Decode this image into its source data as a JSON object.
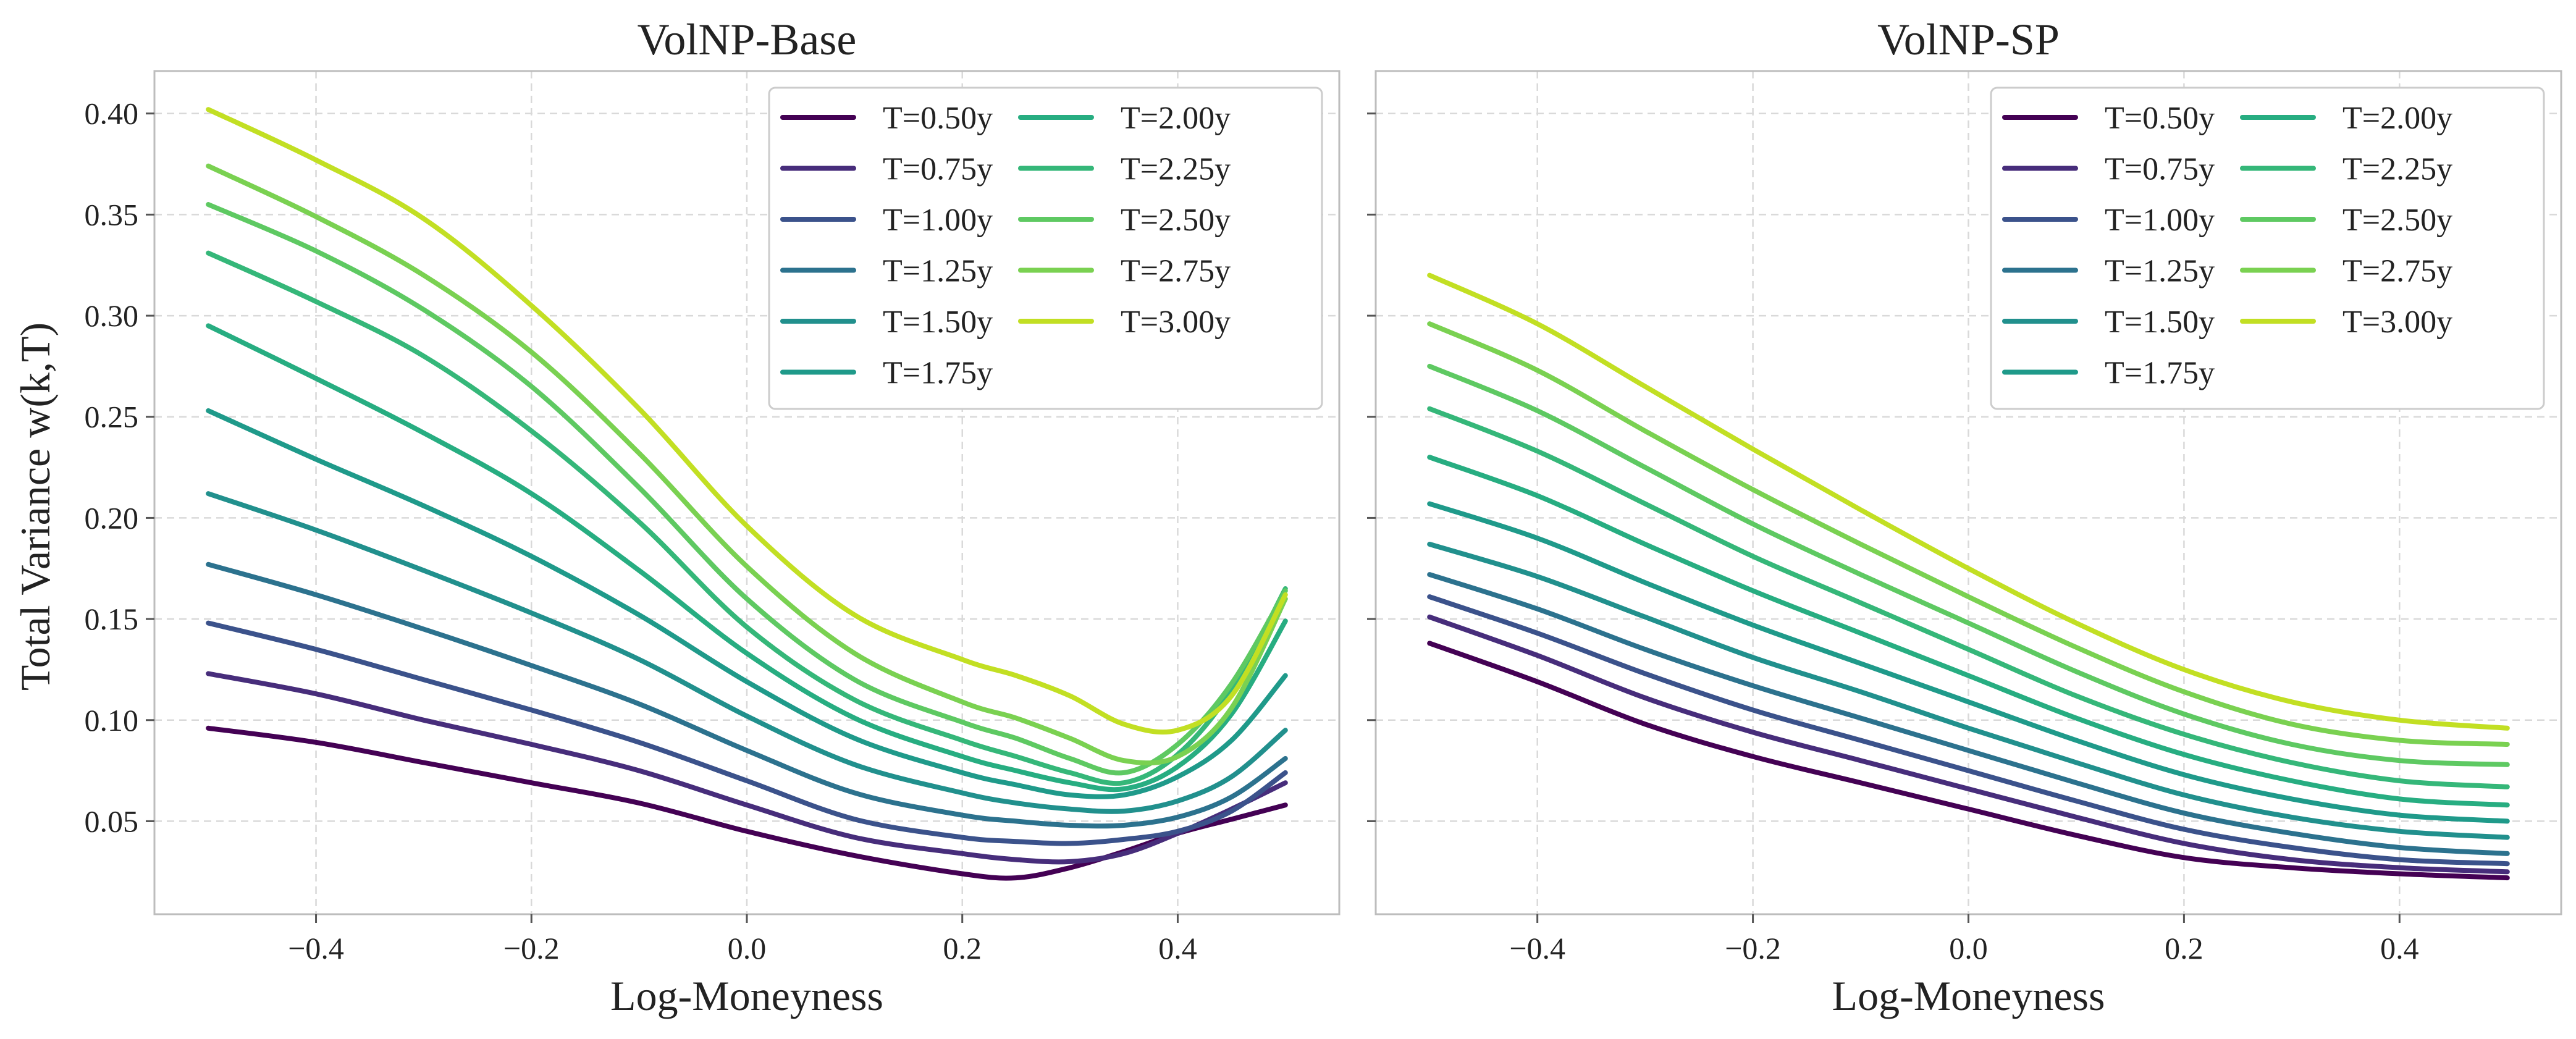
{
  "figure": {
    "ylabel": "Total Variance  w(k,T)"
  },
  "palette": [
    "#440154",
    "#472d7b",
    "#3b528b",
    "#2c728e",
    "#21908d",
    "#1f9a8a",
    "#27ad81",
    "#35b779",
    "#5ec962",
    "#7ad151",
    "#c2df23"
  ],
  "chart_data": [
    {
      "type": "line",
      "title": "VolNP-Base",
      "xlabel": "Log-Moneyness",
      "ylabel": "Total Variance  w(k,T)",
      "xlim": [
        -0.55,
        0.55
      ],
      "ylim": [
        0.004,
        0.421
      ],
      "xticks": [
        -0.4,
        -0.2,
        0.0,
        0.2,
        0.4
      ],
      "xtick_labels": [
        "−0.4",
        "−0.2",
        "0.0",
        "0.2",
        "0.4"
      ],
      "yticks": [
        0.05,
        0.1,
        0.15,
        0.2,
        0.25,
        0.3,
        0.35,
        0.4
      ],
      "ytick_labels": [
        "0.05",
        "0.10",
        "0.15",
        "0.20",
        "0.25",
        "0.30",
        "0.35",
        "0.40"
      ],
      "grid": true,
      "legend": "top-right, 2 columns",
      "x": [
        -0.5,
        -0.4,
        -0.3,
        -0.2,
        -0.1,
        0.0,
        0.1,
        0.2,
        0.25,
        0.3,
        0.35,
        0.4,
        0.45,
        0.5
      ],
      "series": [
        {
          "name": "T=0.50y",
          "values": [
            0.096,
            0.089,
            0.079,
            0.069,
            0.059,
            0.045,
            0.033,
            0.024,
            0.022,
            0.027,
            0.035,
            0.044,
            0.051,
            0.058
          ]
        },
        {
          "name": "T=0.75y",
          "values": [
            0.123,
            0.113,
            0.1,
            0.088,
            0.075,
            0.058,
            0.042,
            0.034,
            0.031,
            0.03,
            0.034,
            0.044,
            0.056,
            0.069
          ]
        },
        {
          "name": "T=1.00y",
          "values": [
            0.148,
            0.135,
            0.12,
            0.105,
            0.089,
            0.07,
            0.051,
            0.042,
            0.04,
            0.039,
            0.041,
            0.045,
            0.055,
            0.074
          ]
        },
        {
          "name": "T=1.25y",
          "values": [
            0.177,
            0.162,
            0.145,
            0.127,
            0.108,
            0.085,
            0.064,
            0.053,
            0.05,
            0.048,
            0.048,
            0.052,
            0.062,
            0.081
          ]
        },
        {
          "name": "T=1.50y",
          "values": [
            0.212,
            0.194,
            0.174,
            0.153,
            0.13,
            0.102,
            0.078,
            0.064,
            0.059,
            0.056,
            0.055,
            0.06,
            0.072,
            0.095
          ]
        },
        {
          "name": "T=1.75y",
          "values": [
            0.253,
            0.229,
            0.206,
            0.181,
            0.152,
            0.119,
            0.091,
            0.074,
            0.068,
            0.063,
            0.063,
            0.072,
            0.09,
            0.122
          ]
        },
        {
          "name": "T=2.00y",
          "values": [
            0.295,
            0.269,
            0.242,
            0.212,
            0.174,
            0.133,
            0.101,
            0.082,
            0.075,
            0.069,
            0.066,
            0.077,
            0.103,
            0.149
          ]
        },
        {
          "name": "T=2.25y",
          "values": [
            0.331,
            0.307,
            0.28,
            0.243,
            0.198,
            0.146,
            0.11,
            0.09,
            0.082,
            0.074,
            0.069,
            0.083,
            0.115,
            0.165
          ]
        },
        {
          "name": "T=2.50y",
          "values": [
            0.355,
            0.332,
            0.303,
            0.265,
            0.215,
            0.16,
            0.12,
            0.099,
            0.091,
            0.081,
            0.074,
            0.088,
            0.118,
            0.164
          ]
        },
        {
          "name": "T=2.75y",
          "values": [
            0.374,
            0.349,
            0.32,
            0.282,
            0.232,
            0.176,
            0.133,
            0.109,
            0.101,
            0.091,
            0.08,
            0.082,
            0.106,
            0.16
          ]
        },
        {
          "name": "T=3.00y",
          "values": [
            0.402,
            0.377,
            0.348,
            0.305,
            0.254,
            0.196,
            0.152,
            0.13,
            0.122,
            0.112,
            0.098,
            0.095,
            0.112,
            0.162
          ]
        }
      ]
    },
    {
      "type": "line",
      "title": "VolNP-SP",
      "xlabel": "Log-Moneyness",
      "ylabel": "",
      "xlim": [
        -0.55,
        0.55
      ],
      "ylim": [
        0.004,
        0.421
      ],
      "xticks": [
        -0.4,
        -0.2,
        0.0,
        0.2,
        0.4
      ],
      "xtick_labels": [
        "−0.4",
        "−0.2",
        "0.0",
        "0.2",
        "0.4"
      ],
      "yticks": [
        0.05,
        0.1,
        0.15,
        0.2,
        0.25,
        0.3,
        0.35,
        0.4
      ],
      "ytick_labels": [],
      "grid": true,
      "legend": "top-right, 2 columns",
      "x": [
        -0.5,
        -0.4,
        -0.3,
        -0.2,
        -0.1,
        0.0,
        0.1,
        0.2,
        0.3,
        0.4,
        0.5
      ],
      "series": [
        {
          "name": "T=0.50y",
          "values": [
            0.138,
            0.119,
            0.098,
            0.082,
            0.069,
            0.056,
            0.043,
            0.032,
            0.027,
            0.024,
            0.022
          ]
        },
        {
          "name": "T=0.75y",
          "values": [
            0.151,
            0.132,
            0.111,
            0.094,
            0.08,
            0.066,
            0.052,
            0.039,
            0.031,
            0.027,
            0.025
          ]
        },
        {
          "name": "T=1.00y",
          "values": [
            0.161,
            0.143,
            0.123,
            0.105,
            0.09,
            0.075,
            0.06,
            0.046,
            0.037,
            0.031,
            0.029
          ]
        },
        {
          "name": "T=1.25y",
          "values": [
            0.172,
            0.155,
            0.135,
            0.117,
            0.101,
            0.085,
            0.069,
            0.054,
            0.044,
            0.037,
            0.034
          ]
        },
        {
          "name": "T=1.50y",
          "values": [
            0.187,
            0.171,
            0.151,
            0.131,
            0.114,
            0.096,
            0.079,
            0.063,
            0.052,
            0.045,
            0.042
          ]
        },
        {
          "name": "T=1.75y",
          "values": [
            0.207,
            0.19,
            0.168,
            0.147,
            0.128,
            0.109,
            0.09,
            0.073,
            0.061,
            0.053,
            0.05
          ]
        },
        {
          "name": "T=2.00y",
          "values": [
            0.23,
            0.211,
            0.187,
            0.164,
            0.143,
            0.122,
            0.101,
            0.083,
            0.07,
            0.061,
            0.058
          ]
        },
        {
          "name": "T=2.25y",
          "values": [
            0.254,
            0.233,
            0.207,
            0.181,
            0.158,
            0.135,
            0.112,
            0.093,
            0.079,
            0.07,
            0.067
          ]
        },
        {
          "name": "T=2.50y",
          "values": [
            0.275,
            0.253,
            0.225,
            0.197,
            0.172,
            0.148,
            0.124,
            0.103,
            0.088,
            0.08,
            0.078
          ]
        },
        {
          "name": "T=2.75y",
          "values": [
            0.296,
            0.273,
            0.243,
            0.214,
            0.187,
            0.161,
            0.136,
            0.114,
            0.098,
            0.09,
            0.088
          ]
        },
        {
          "name": "T=3.00y",
          "values": [
            0.32,
            0.296,
            0.265,
            0.234,
            0.204,
            0.175,
            0.148,
            0.125,
            0.109,
            0.1,
            0.096
          ]
        }
      ]
    }
  ]
}
